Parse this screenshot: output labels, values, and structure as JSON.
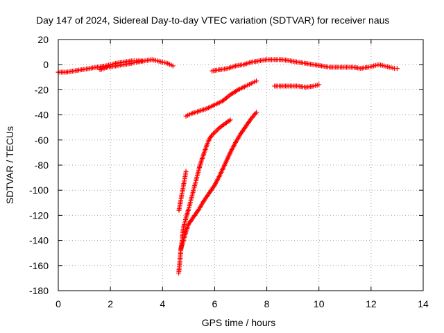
{
  "chart_data": {
    "type": "scatter",
    "title": "Day 147 of 2024, Sidereal Day-to-day VTEC variation (SDTVAR) for receiver naus",
    "xlabel": "GPS time / hours",
    "ylabel": "SDTVAR / TECUs",
    "xlim": [
      0,
      14
    ],
    "ylim": [
      -180,
      20
    ],
    "xticks": [
      0,
      2,
      4,
      6,
      8,
      10,
      12,
      14
    ],
    "yticks": [
      -180,
      -160,
      -140,
      -120,
      -100,
      -80,
      -60,
      -40,
      -20,
      0,
      20
    ],
    "grid": true,
    "marker": "plus",
    "color": "#ff0000",
    "series": [
      {
        "points": [
          [
            0.0,
            -6
          ],
          [
            0.3,
            -6
          ],
          [
            0.6,
            -5
          ],
          [
            0.9,
            -4
          ],
          [
            1.2,
            -3
          ],
          [
            1.5,
            -2
          ],
          [
            1.8,
            -1
          ],
          [
            2.0,
            0
          ],
          [
            2.2,
            1
          ],
          [
            2.5,
            2
          ],
          [
            2.8,
            3
          ],
          [
            3.0,
            3
          ],
          [
            3.2,
            3
          ],
          [
            1.6,
            -4
          ],
          [
            1.9,
            -2
          ],
          [
            2.2,
            -1
          ],
          [
            2.5,
            0
          ],
          [
            2.8,
            1
          ],
          [
            3.0,
            2
          ],
          [
            3.6,
            4
          ],
          [
            3.8,
            3
          ],
          [
            4.0,
            2
          ],
          [
            4.2,
            1
          ],
          [
            4.4,
            -1
          ],
          [
            5.9,
            -5
          ],
          [
            6.2,
            -4
          ],
          [
            6.5,
            -3
          ],
          [
            6.8,
            -1
          ],
          [
            7.1,
            0
          ],
          [
            7.4,
            2
          ],
          [
            7.7,
            3
          ],
          [
            8.0,
            4
          ],
          [
            8.3,
            4
          ],
          [
            8.6,
            4
          ],
          [
            8.9,
            3
          ],
          [
            9.2,
            2
          ],
          [
            9.5,
            1
          ],
          [
            9.8,
            0
          ],
          [
            10.1,
            -1
          ],
          [
            10.4,
            -2
          ],
          [
            10.7,
            -2
          ],
          [
            11.0,
            -2
          ],
          [
            11.3,
            -2
          ],
          [
            11.6,
            -3
          ],
          [
            11.9,
            -2
          ],
          [
            12.1,
            -1
          ],
          [
            12.3,
            0
          ],
          [
            12.5,
            -1
          ],
          [
            12.7,
            -2
          ],
          [
            12.9,
            -3
          ],
          [
            13.0,
            -3
          ],
          [
            8.3,
            -17
          ],
          [
            8.6,
            -17
          ],
          [
            8.9,
            -17
          ],
          [
            9.2,
            -17
          ],
          [
            9.5,
            -18
          ],
          [
            9.8,
            -17
          ],
          [
            10.0,
            -16
          ],
          [
            4.9,
            -41
          ],
          [
            5.1,
            -39
          ],
          [
            5.4,
            -37
          ],
          [
            5.7,
            -35
          ],
          [
            6.0,
            -32
          ],
          [
            6.3,
            -29
          ],
          [
            6.6,
            -24
          ],
          [
            6.9,
            -20
          ],
          [
            7.2,
            -17
          ],
          [
            7.4,
            -15
          ],
          [
            7.6,
            -13
          ],
          [
            4.62,
            -166
          ],
          [
            4.66,
            -158
          ],
          [
            4.7,
            -148
          ],
          [
            4.75,
            -140
          ],
          [
            4.8,
            -130
          ],
          [
            4.9,
            -122
          ],
          [
            5.0,
            -115
          ],
          [
            5.1,
            -107
          ],
          [
            5.2,
            -99
          ],
          [
            5.3,
            -91
          ],
          [
            5.4,
            -83
          ],
          [
            5.5,
            -76
          ],
          [
            5.6,
            -70
          ],
          [
            5.7,
            -64
          ],
          [
            5.8,
            -59
          ],
          [
            5.9,
            -56
          ],
          [
            6.0,
            -54
          ],
          [
            6.2,
            -50
          ],
          [
            6.4,
            -47
          ],
          [
            6.6,
            -44
          ],
          [
            4.63,
            -116
          ],
          [
            4.7,
            -108
          ],
          [
            4.77,
            -100
          ],
          [
            4.84,
            -92
          ],
          [
            4.9,
            -85
          ],
          [
            4.7,
            -147
          ],
          [
            4.8,
            -140
          ],
          [
            4.9,
            -133
          ],
          [
            5.0,
            -127
          ],
          [
            5.2,
            -121
          ],
          [
            5.4,
            -115
          ],
          [
            5.6,
            -108
          ],
          [
            5.8,
            -102
          ],
          [
            6.0,
            -96
          ],
          [
            6.2,
            -88
          ],
          [
            6.4,
            -79
          ],
          [
            6.6,
            -70
          ],
          [
            6.8,
            -62
          ],
          [
            7.0,
            -55
          ],
          [
            7.2,
            -49
          ],
          [
            7.4,
            -43
          ],
          [
            7.6,
            -38
          ]
        ]
      }
    ]
  }
}
